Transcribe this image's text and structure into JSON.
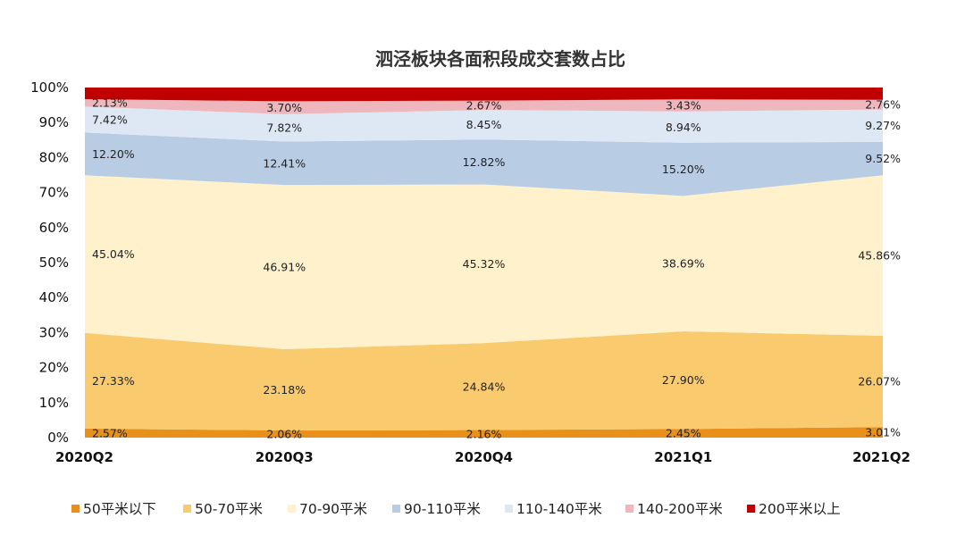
{
  "chart_data": {
    "type": "area",
    "stacked": "percent",
    "title": "泗泾板块各面积段成交套数占比",
    "xlabel": "",
    "ylabel": "",
    "ylim": [
      0,
      100
    ],
    "y_ticks": [
      "0%",
      "10%",
      "20%",
      "30%",
      "40%",
      "50%",
      "60%",
      "70%",
      "80%",
      "90%",
      "100%"
    ],
    "categories": [
      "2020Q2",
      "2020Q3",
      "2020Q4",
      "2021Q1",
      "2021Q2"
    ],
    "grid": false,
    "legend_position": "bottom",
    "series": [
      {
        "name": "50平米以下",
        "color": "#E8901A",
        "values": [
          2.57,
          2.06,
          2.16,
          2.45,
          3.01
        ],
        "labels": [
          "2.57%",
          "2.06%",
          "2.16%",
          "2.45%",
          "3.01%"
        ]
      },
      {
        "name": "50-70平米",
        "color": "#FACB6E",
        "values": [
          27.33,
          23.18,
          24.84,
          27.9,
          26.07
        ],
        "labels": [
          "27.33%",
          "23.18%",
          "24.84%",
          "27.90%",
          "26.07%"
        ]
      },
      {
        "name": "70-90平米",
        "color": "#FFF1CC",
        "values": [
          45.04,
          46.91,
          45.32,
          38.69,
          45.86
        ],
        "labels": [
          "45.04%",
          "46.91%",
          "45.32%",
          "38.69%",
          "45.86%"
        ]
      },
      {
        "name": "90-110平米",
        "color": "#B8CCE4",
        "values": [
          12.2,
          12.41,
          12.82,
          15.2,
          9.52
        ],
        "labels": [
          "12.20%",
          "12.41%",
          "12.82%",
          "15.20%",
          "9.52%"
        ]
      },
      {
        "name": "110-140平米",
        "color": "#DEE8F4",
        "values": [
          7.42,
          7.82,
          8.45,
          8.94,
          9.27
        ],
        "labels": [
          "7.42%",
          "7.82%",
          "8.45%",
          "8.94%",
          "9.27%"
        ]
      },
      {
        "name": "140-200平米",
        "color": "#EDB7BD",
        "values": [
          2.13,
          3.7,
          2.67,
          3.43,
          2.76
        ],
        "labels": [
          "2.13%",
          "3.70%",
          "2.67%",
          "3.43%",
          "2.76%"
        ]
      },
      {
        "name": "200平米以上",
        "color": "#C00000",
        "values": [
          3.31,
          3.92,
          3.74,
          3.39,
          3.52
        ],
        "labels": []
      }
    ]
  }
}
